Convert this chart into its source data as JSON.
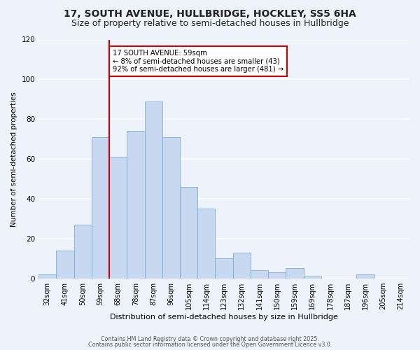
{
  "title": "17, SOUTH AVENUE, HULLBRIDGE, HOCKLEY, SS5 6HA",
  "subtitle": "Size of property relative to semi-detached houses in Hullbridge",
  "xlabel": "Distribution of semi-detached houses by size in Hullbridge",
  "ylabel": "Number of semi-detached properties",
  "bin_labels": [
    "32sqm",
    "41sqm",
    "50sqm",
    "59sqm",
    "68sqm",
    "78sqm",
    "87sqm",
    "96sqm",
    "105sqm",
    "114sqm",
    "123sqm",
    "132sqm",
    "141sqm",
    "150sqm",
    "159sqm",
    "169sqm",
    "178sqm",
    "187sqm",
    "196sqm",
    "205sqm",
    "214sqm"
  ],
  "bar_values": [
    2,
    14,
    27,
    71,
    61,
    74,
    89,
    71,
    46,
    35,
    10,
    13,
    4,
    3,
    5,
    1,
    0,
    0,
    2,
    0,
    0
  ],
  "bar_color": "#c8d8f0",
  "bar_edge_color": "#7ab0d8",
  "vline_color": "#cc0000",
  "vline_position": 3.5,
  "annotation_title": "17 SOUTH AVENUE: 59sqm",
  "annotation_line1": "← 8% of semi-detached houses are smaller (43)",
  "annotation_line2": "92% of semi-detached houses are larger (481) →",
  "annotation_box_color": "#ffffff",
  "annotation_box_edge": "#cc0000",
  "ylim": [
    0,
    120
  ],
  "yticks": [
    0,
    20,
    40,
    60,
    80,
    100,
    120
  ],
  "footer1": "Contains HM Land Registry data © Crown copyright and database right 2025.",
  "footer2": "Contains public sector information licensed under the Open Government Licence v3.0.",
  "title_fontsize": 10,
  "subtitle_fontsize": 9,
  "bg_color": "#eef2fb"
}
